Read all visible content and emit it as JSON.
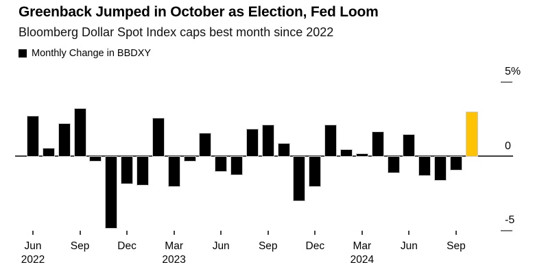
{
  "header": {
    "title": "Greenback Jumped in October as Election, Fed Loom",
    "subtitle": "Bloomberg Dollar Spot Index caps best month since 2022"
  },
  "legend": {
    "swatch_color": "#000000",
    "label": "Monthly Change in BBDXY"
  },
  "chart_data": {
    "type": "bar",
    "title": "Greenback Jumped in October as Election, Fed Loom",
    "subtitle": "Bloomberg Dollar Spot Index caps best month since 2022",
    "series_name": "Monthly Change in BBDXY",
    "unit": "%",
    "x": [
      "Jun 2022",
      "Jul 2022",
      "Aug 2022",
      "Sep 2022",
      "Oct 2022",
      "Nov 2022",
      "Dec 2022",
      "Jan 2023",
      "Feb 2023",
      "Mar 2023",
      "Apr 2023",
      "May 2023",
      "Jun 2023",
      "Jul 2023",
      "Aug 2023",
      "Sep 2023",
      "Oct 2023",
      "Nov 2023",
      "Dec 2023",
      "Jan 2024",
      "Feb 2024",
      "Mar 2024",
      "Apr 2024",
      "May 2024",
      "Jun 2024",
      "Jul 2024",
      "Aug 2024",
      "Sep 2024",
      "Oct 2024"
    ],
    "values": [
      2.7,
      0.55,
      2.2,
      3.2,
      -0.3,
      -4.8,
      -1.8,
      -1.9,
      2.55,
      -2.0,
      -0.3,
      1.55,
      -1.0,
      -1.2,
      1.8,
      2.1,
      0.85,
      -2.95,
      -2.0,
      2.1,
      0.45,
      0.15,
      1.65,
      -1.1,
      1.45,
      -1.25,
      -1.6,
      -0.9,
      2.95
    ],
    "bar_color": "#000000",
    "highlight_index": 28,
    "highlight_color": "#FFC306",
    "ylim": [
      -5.5,
      5.5
    ],
    "grid": false,
    "legend_position": "top-left",
    "yticks": [
      {
        "value": 5,
        "label": "5%"
      },
      {
        "value": 0,
        "label": "0"
      },
      {
        "value": -5,
        "label": "-5"
      }
    ],
    "xticks": [
      {
        "index": 0,
        "label": "Jun",
        "year": "2022"
      },
      {
        "index": 3,
        "label": "Sep"
      },
      {
        "index": 6,
        "label": "Dec"
      },
      {
        "index": 9,
        "label": "Mar",
        "year": "2023"
      },
      {
        "index": 12,
        "label": "Jun"
      },
      {
        "index": 15,
        "label": "Sep"
      },
      {
        "index": 18,
        "label": "Dec"
      },
      {
        "index": 21,
        "label": "Mar",
        "year": "2024"
      },
      {
        "index": 24,
        "label": "Jun"
      },
      {
        "index": 27,
        "label": "Sep"
      }
    ]
  }
}
